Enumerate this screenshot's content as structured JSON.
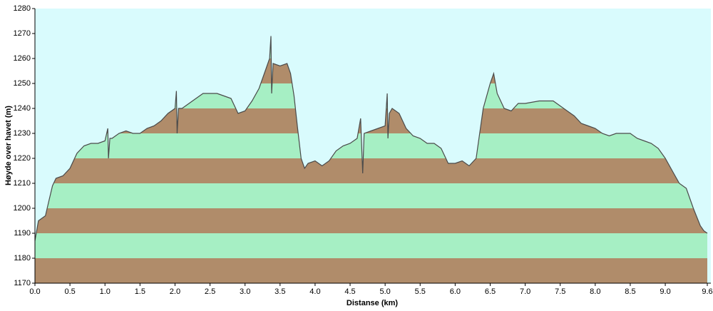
{
  "chart_data": {
    "type": "area",
    "xlabel": "Distanse   (km)",
    "ylabel": "Høyde over havet (m)",
    "background": "#d9fbfd",
    "band_colors": [
      "#b08c6a",
      "#a6efc4"
    ],
    "line_color": "#4a4a4a",
    "xlim": [
      0,
      9.6
    ],
    "ylim": [
      1170,
      1280
    ],
    "xticks": [
      {
        "value": 0,
        "label": "0.0"
      },
      0.5,
      {
        "value": 1,
        "label": "1.0"
      },
      1.5,
      {
        "value": 2,
        "label": "2.0"
      },
      2.5,
      {
        "value": 3,
        "label": "3.0"
      },
      3.5,
      {
        "value": 4,
        "label": "4.0"
      },
      4.5,
      {
        "value": 5,
        "label": "5.0"
      },
      5.5,
      {
        "value": 6,
        "label": "6.0"
      },
      6.5,
      {
        "value": 7,
        "label": "7.0"
      },
      7.5,
      {
        "value": 8,
        "label": "8.0"
      },
      8.5,
      {
        "value": 9,
        "label": "9.0"
      },
      9.6
    ],
    "yticks": [
      1170,
      1180,
      1190,
      1200,
      1210,
      1220,
      1230,
      1240,
      1250,
      1260,
      1270,
      1280
    ],
    "x": [
      0,
      0.05,
      0.15,
      0.2,
      0.25,
      0.3,
      0.4,
      0.5,
      0.6,
      0.7,
      0.8,
      0.9,
      1.0,
      1.04,
      1.05,
      1.07,
      1.1,
      1.2,
      1.3,
      1.4,
      1.5,
      1.6,
      1.7,
      1.8,
      1.9,
      2.0,
      2.02,
      2.03,
      2.05,
      2.1,
      2.2,
      2.3,
      2.4,
      2.5,
      2.6,
      2.7,
      2.8,
      2.9,
      3.0,
      3.1,
      3.2,
      3.3,
      3.35,
      3.37,
      3.38,
      3.4,
      3.5,
      3.6,
      3.65,
      3.7,
      3.75,
      3.8,
      3.85,
      3.9,
      4.0,
      4.1,
      4.2,
      4.3,
      4.4,
      4.5,
      4.6,
      4.65,
      4.68,
      4.7,
      4.8,
      4.9,
      5.0,
      5.03,
      5.04,
      5.06,
      5.1,
      5.2,
      5.3,
      5.4,
      5.5,
      5.6,
      5.7,
      5.8,
      5.9,
      6.0,
      6.1,
      6.2,
      6.3,
      6.4,
      6.5,
      6.55,
      6.6,
      6.7,
      6.8,
      6.9,
      7.0,
      7.2,
      7.4,
      7.5,
      7.6,
      7.7,
      7.8,
      7.9,
      8.0,
      8.1,
      8.2,
      8.3,
      8.4,
      8.5,
      8.6,
      8.7,
      8.8,
      8.9,
      9.0,
      9.1,
      9.2,
      9.3,
      9.4,
      9.5,
      9.55,
      9.6
    ],
    "values": [
      1187,
      1195,
      1197,
      1203,
      1209,
      1212,
      1213,
      1216,
      1222,
      1225,
      1226,
      1226,
      1227,
      1232,
      1220,
      1228,
      1228,
      1230,
      1231,
      1230,
      1230,
      1232,
      1233,
      1235,
      1238,
      1240,
      1247,
      1230,
      1240,
      1240,
      1242,
      1244,
      1246,
      1246,
      1246,
      1245,
      1244,
      1238,
      1239,
      1243,
      1248,
      1256,
      1260,
      1269,
      1246,
      1258,
      1257,
      1258,
      1254,
      1245,
      1232,
      1220,
      1216,
      1218,
      1219,
      1217,
      1219,
      1223,
      1225,
      1226,
      1228,
      1236,
      1214,
      1230,
      1231,
      1232,
      1233,
      1246,
      1228,
      1238,
      1240,
      1238,
      1232,
      1229,
      1228,
      1226,
      1226,
      1224,
      1218,
      1218,
      1219,
      1217,
      1220,
      1240,
      1250,
      1254,
      1246,
      1240,
      1239,
      1242,
      1242,
      1243,
      1243,
      1241,
      1239,
      1237,
      1234,
      1233,
      1232,
      1230,
      1229,
      1230,
      1230,
      1230,
      1228,
      1227,
      1226,
      1224,
      1220,
      1215,
      1210,
      1208,
      1200,
      1193,
      1191,
      1190
    ]
  }
}
